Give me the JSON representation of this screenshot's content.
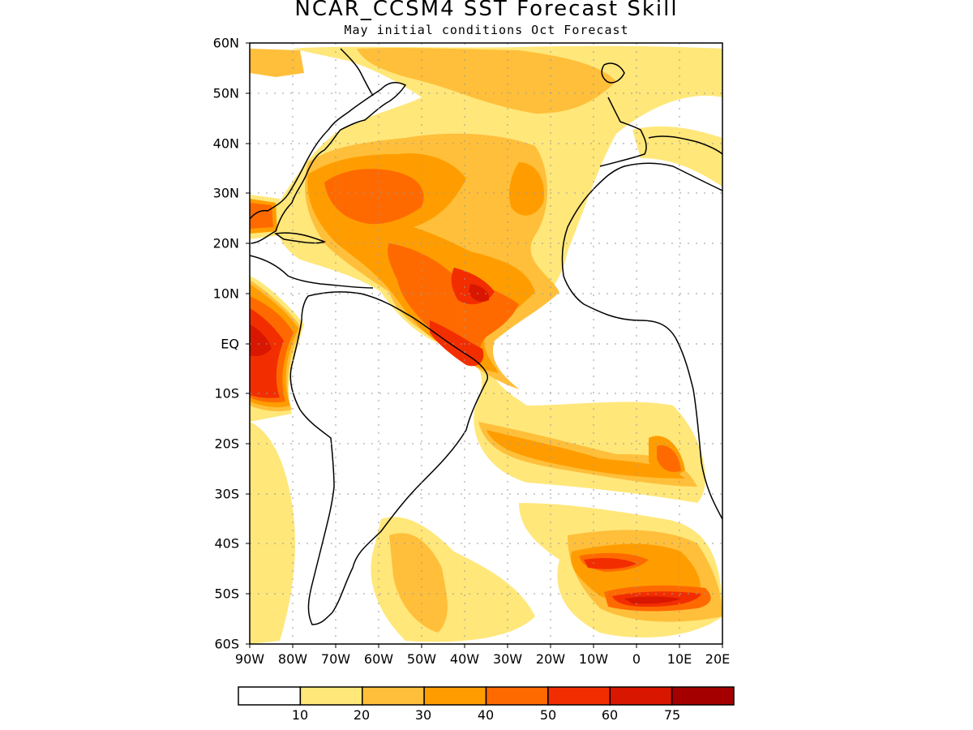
{
  "title": "NCAR_CCSM4 SST Forecast Skill",
  "subtitle": "May initial conditions  Oct Forecast",
  "lat_labels": [
    "60N",
    "50N",
    "40N",
    "30N",
    "20N",
    "10N",
    "EQ",
    "10S",
    "20S",
    "30S",
    "40S",
    "50S",
    "60S"
  ],
  "lon_labels": [
    "90W",
    "80W",
    "70W",
    "60W",
    "50W",
    "40W",
    "30W",
    "20W",
    "10W",
    "0",
    "10E",
    "20E"
  ],
  "colorbar": {
    "colors": [
      "#ffffff",
      "#ffe77a",
      "#ffbf3a",
      "#ff9d00",
      "#ff6a00",
      "#f22e00",
      "#d91600",
      "#a50000"
    ],
    "labels": [
      "10",
      "20",
      "30",
      "40",
      "50",
      "60",
      "75"
    ]
  }
}
